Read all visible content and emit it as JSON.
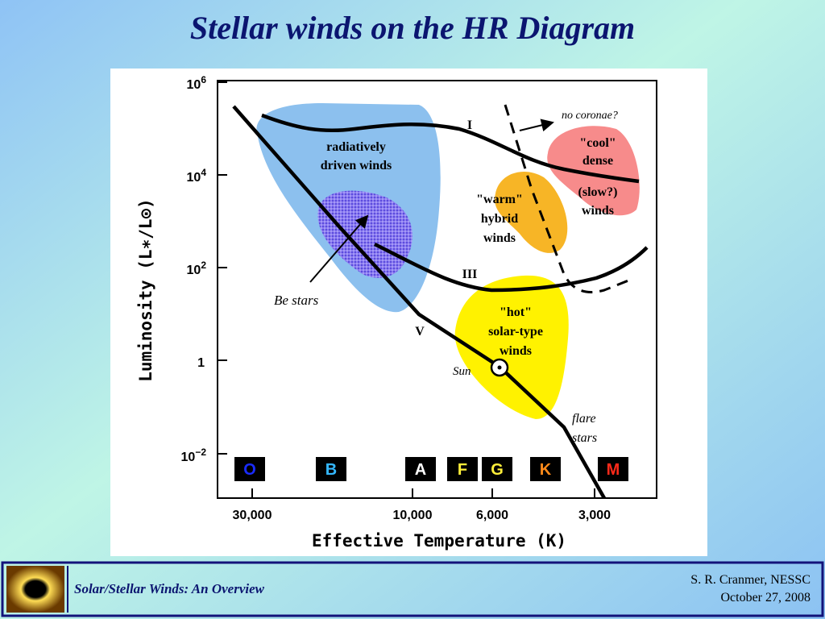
{
  "title": "Stellar winds on the HR Diagram",
  "plot": {
    "y_axis_label": "Luminosity  (L∗/L⊙)",
    "x_axis_label": "Effective Temperature  (K)",
    "y_ticks": [
      {
        "base": "10",
        "exponent": "6"
      },
      {
        "base": "10",
        "exponent": "4"
      },
      {
        "base": "10",
        "exponent": "2"
      },
      {
        "base": "1"
      },
      {
        "base": "10",
        "exponent": "−2"
      }
    ],
    "x_ticks": [
      "30,000",
      "10,000",
      "6,000",
      "3,000"
    ],
    "spectral_types": [
      "O",
      "B",
      "A",
      "F",
      "G",
      "K",
      "M"
    ],
    "regions": [
      {
        "lines": [
          "radiatively",
          "driven winds"
        ]
      },
      {
        "lines": [
          "\"warm\"",
          "hybrid",
          "winds"
        ]
      },
      {
        "lines": [
          "\"cool\"",
          "dense"
        ]
      },
      {
        "lines": [
          "(slow?)",
          "winds"
        ]
      },
      {
        "lines": [
          "\"hot\"",
          "solar-type",
          "winds"
        ]
      }
    ],
    "luminosity_classes": [
      "I",
      "III",
      "V"
    ],
    "annotations": {
      "no_coronae": "no coronae?",
      "be_stars": "Be stars",
      "sun": "Sun",
      "flare_stars": [
        "flare",
        "stars"
      ]
    }
  },
  "footer": {
    "title": "Solar/Stellar Winds: An Overview",
    "author": "S. R. Cranmer, NESSC",
    "date": "October 27, 2008"
  }
}
